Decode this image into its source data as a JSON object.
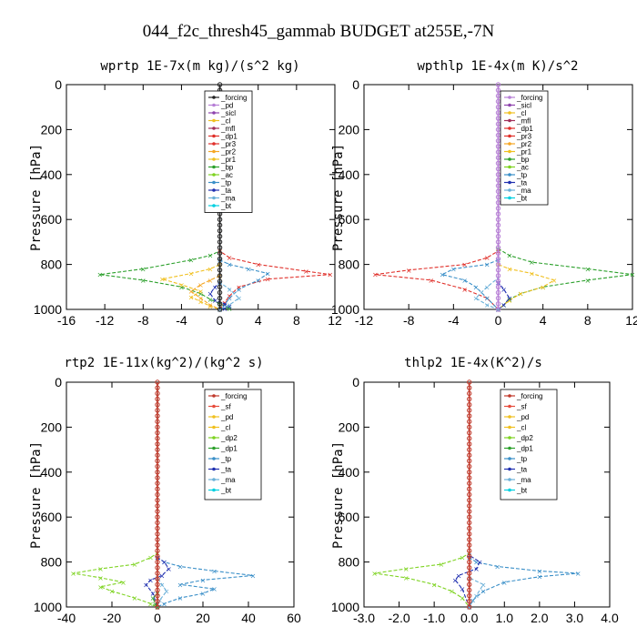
{
  "figure": {
    "title": "044_f2c_thresh45_gammab  BUDGET at255E,-7N"
  },
  "colors": {
    "forcing": "#c0392b",
    "sf": "#e74c3c",
    "pd": "#b77fd6",
    "sicl": "#8e44ad",
    "cl": "#f0c020",
    "mfl": "#a0305a",
    "dp1": "#e0302a",
    "dp2": "#2ca02c",
    "pr3": "#e0302a",
    "pr2": "#f5a623",
    "pr1": "#f0c020",
    "bp": "#2ca02c",
    "ac": "#7ed321",
    "tp": "#3a8fc8",
    "ta": "#2030b0",
    "ma": "#6ab0d8",
    "bt": "#00d0e0"
  },
  "chart_data": [
    {
      "type": "line",
      "title": "wprtp  1E-7x(m kg)/(s^2 kg)",
      "ylabel": "Pressure [hPa]",
      "xlim": [
        -16,
        12
      ],
      "ylim": [
        1000,
        0
      ],
      "xticks": [
        "-16",
        "-12",
        "-8",
        "-4",
        "0",
        "4",
        "8",
        "12"
      ],
      "xtick_values": [
        -16,
        -12,
        -8,
        -4,
        0,
        4,
        8,
        12
      ],
      "yticks": [
        "0",
        "200",
        "400",
        "600",
        "800",
        "1000"
      ],
      "ytick_values": [
        0,
        200,
        400,
        600,
        800,
        1000
      ],
      "legend": [
        "_forcing",
        "_pd",
        "_sicl",
        "_cl",
        "_mfl",
        "_dp1",
        "_pr3",
        "_pr2",
        "_pr1",
        "_bp",
        "_ac",
        "_tp",
        "_ta",
        "_ma",
        "_bt"
      ],
      "legend_colors": [
        "#222222",
        "#b77fd6",
        "#8e44ad",
        "#f0c020",
        "#a0305a",
        "#e0302a",
        "#e0302a",
        "#f5a623",
        "#f0c020",
        "#2ca02c",
        "#7ed321",
        "#3a8fc8",
        "#2030b0",
        "#6ab0d8",
        "#00d0e0"
      ],
      "series": [
        {
          "color": "#2ca02c",
          "x": [
            0,
            0,
            -1,
            -3,
            -8,
            -12.5,
            -8,
            -4,
            -2,
            -1,
            0,
            1,
            0
          ],
          "y": [
            0,
            740,
            760,
            780,
            820,
            845,
            870,
            900,
            930,
            955,
            975,
            995,
            1000
          ]
        },
        {
          "color": "#e0302a",
          "x": [
            0,
            0,
            1,
            4,
            9,
            11.5,
            5,
            2,
            1,
            0.5,
            0
          ],
          "y": [
            0,
            740,
            770,
            800,
            830,
            845,
            865,
            900,
            940,
            970,
            1000
          ]
        },
        {
          "color": "#f0c020",
          "x": [
            0,
            0,
            -1,
            -3,
            -6,
            -4,
            -2,
            -3,
            -2,
            -1,
            0
          ],
          "y": [
            0,
            800,
            820,
            840,
            865,
            890,
            920,
            945,
            965,
            985,
            1000
          ]
        },
        {
          "color": "#f5a623",
          "x": [
            0,
            0,
            -1,
            -2,
            -3,
            -2,
            -1,
            0
          ],
          "y": [
            0,
            850,
            870,
            890,
            920,
            950,
            980,
            1000
          ]
        },
        {
          "color": "#3a8fc8",
          "x": [
            0,
            0,
            1,
            3,
            5,
            4,
            2,
            1,
            0.5,
            0
          ],
          "y": [
            0,
            780,
            800,
            820,
            840,
            870,
            910,
            950,
            980,
            1000
          ]
        },
        {
          "color": "#2030b0",
          "x": [
            0,
            0,
            -0.5,
            -1,
            -0.5,
            0.5,
            1,
            0.5,
            0
          ],
          "y": [
            0,
            880,
            900,
            930,
            960,
            975,
            985,
            995,
            1000
          ]
        },
        {
          "color": "#6ab0d8",
          "x": [
            0,
            0,
            1,
            2,
            1,
            0
          ],
          "y": [
            0,
            880,
            910,
            950,
            980,
            1000
          ]
        },
        {
          "color": "#222222",
          "x": [
            0,
            0
          ],
          "y": [
            0,
            1000
          ],
          "markers": true
        }
      ]
    },
    {
      "type": "line",
      "title": "wpthlp  1E-4x(m K)/s^2",
      "ylabel": "Pressure [hPa]",
      "xlim": [
        -12,
        12
      ],
      "ylim": [
        1000,
        0
      ],
      "xticks": [
        "-12",
        "-8",
        "-4",
        "0",
        "4",
        "8",
        "12"
      ],
      "xtick_values": [
        -12,
        -8,
        -4,
        0,
        4,
        8,
        12
      ],
      "yticks": [
        "0",
        "200",
        "400",
        "600",
        "800",
        "1000"
      ],
      "ytick_values": [
        0,
        200,
        400,
        600,
        800,
        1000
      ],
      "legend": [
        "_forcing",
        "_sicl",
        "_cl",
        "_mfl",
        "_dp1",
        "_pr3",
        "_pr2",
        "_pr1",
        "_bp",
        "_ac",
        "_tp",
        "_ta",
        "_ma",
        "_bt"
      ],
      "legend_colors": [
        "#b77fd6",
        "#8e44ad",
        "#f0c020",
        "#a0305a",
        "#e0302a",
        "#e0302a",
        "#f5a623",
        "#f0c020",
        "#2ca02c",
        "#7ed321",
        "#3a8fc8",
        "#2030b0",
        "#6ab0d8",
        "#00d0e0"
      ],
      "series": [
        {
          "color": "#2ca02c",
          "x": [
            0,
            0,
            1,
            3,
            8,
            12,
            8,
            4,
            2,
            1,
            0.5,
            0
          ],
          "y": [
            0,
            730,
            760,
            790,
            820,
            845,
            870,
            900,
            930,
            955,
            980,
            1000
          ]
        },
        {
          "color": "#e0302a",
          "x": [
            0,
            0,
            -1,
            -3,
            -8,
            -11,
            -6,
            -3,
            -1,
            0
          ],
          "y": [
            0,
            740,
            770,
            800,
            825,
            845,
            870,
            910,
            950,
            1000
          ]
        },
        {
          "color": "#f0c020",
          "x": [
            0,
            0,
            1,
            3,
            5,
            4,
            2,
            1,
            0
          ],
          "y": [
            0,
            800,
            820,
            840,
            870,
            900,
            930,
            960,
            1000
          ]
        },
        {
          "color": "#3a8fc8",
          "x": [
            0,
            0,
            -1,
            -4,
            -5,
            -3,
            -2,
            -1,
            0
          ],
          "y": [
            0,
            780,
            800,
            820,
            845,
            870,
            900,
            950,
            1000
          ]
        },
        {
          "color": "#2030b0",
          "x": [
            0,
            0,
            0.5,
            1,
            0.5,
            0
          ],
          "y": [
            0,
            880,
            910,
            950,
            980,
            1000
          ]
        },
        {
          "color": "#6ab0d8",
          "x": [
            0,
            0,
            -1,
            -2,
            -1,
            0
          ],
          "y": [
            0,
            860,
            900,
            950,
            980,
            1000
          ]
        },
        {
          "color": "#b77fd6",
          "x": [
            0,
            0
          ],
          "y": [
            0,
            1000
          ],
          "markers": true
        }
      ]
    },
    {
      "type": "line",
      "title": "rtp2  1E-11x(kg^2)/(kg^2 s)",
      "ylabel": "Pressure [hPa]",
      "xlim": [
        -40,
        60
      ],
      "ylim": [
        1000,
        0
      ],
      "xticks": [
        "-40",
        "-20",
        "0",
        "20",
        "40",
        "60"
      ],
      "xtick_values": [
        -40,
        -20,
        0,
        20,
        40,
        60
      ],
      "yticks": [
        "0",
        "200",
        "400",
        "600",
        "800",
        "1000"
      ],
      "ytick_values": [
        0,
        200,
        400,
        600,
        800,
        1000
      ],
      "legend": [
        "_forcing",
        "_sf",
        "_pd",
        "_cl",
        "_dp2",
        "_dp1",
        "_tp",
        "_ta",
        "_ma",
        "_bt"
      ],
      "legend_colors": [
        "#c0392b",
        "#e74c3c",
        "#f0c020",
        "#f0c020",
        "#7ed321",
        "#2ca02c",
        "#3a8fc8",
        "#2030b0",
        "#6ab0d8",
        "#00d0e0"
      ],
      "series": [
        {
          "color": "#7ed321",
          "x": [
            0,
            0,
            -3,
            -10,
            -25,
            -37,
            -25,
            -15,
            -25,
            -20,
            -10,
            -3,
            0
          ],
          "y": [
            0,
            760,
            780,
            810,
            830,
            850,
            870,
            890,
            910,
            930,
            960,
            985,
            1000
          ]
        },
        {
          "color": "#3a8fc8",
          "x": [
            0,
            0,
            3,
            10,
            25,
            42,
            20,
            10,
            25,
            20,
            10,
            3,
            0
          ],
          "y": [
            0,
            780,
            800,
            820,
            840,
            860,
            880,
            900,
            920,
            940,
            960,
            985,
            1000
          ]
        },
        {
          "color": "#2030b0",
          "x": [
            0,
            0,
            3,
            5,
            2,
            -3,
            -5,
            -2,
            0
          ],
          "y": [
            0,
            780,
            800,
            830,
            860,
            880,
            900,
            940,
            1000
          ]
        },
        {
          "color": "#6ab0d8",
          "x": [
            0,
            0,
            2,
            4,
            1,
            0
          ],
          "y": [
            0,
            870,
            900,
            930,
            970,
            1000
          ]
        },
        {
          "color": "#2ca02c",
          "x": [
            0,
            0,
            -2,
            -1,
            0
          ],
          "y": [
            0,
            940,
            960,
            985,
            1000
          ]
        },
        {
          "color": "#c0392b",
          "x": [
            0,
            0
          ],
          "y": [
            0,
            1000
          ],
          "markers": true
        }
      ]
    },
    {
      "type": "line",
      "title": "thlp2  1E-4x(K^2)/s",
      "ylabel": "Pressure [hPa]",
      "xlim": [
        -3,
        4
      ],
      "ylim": [
        1000,
        0
      ],
      "xticks": [
        "-3.0",
        "-2.0",
        "-1.0",
        "0.0",
        "1.0",
        "2.0",
        "3.0",
        "4.0"
      ],
      "xtick_values": [
        -3,
        -2,
        -1,
        0,
        1,
        2,
        3,
        4
      ],
      "yticks": [
        "0",
        "200",
        "400",
        "600",
        "800",
        "1000"
      ],
      "ytick_values": [
        0,
        200,
        400,
        600,
        800,
        1000
      ],
      "legend": [
        "_forcing",
        "_sf",
        "_pd",
        "_cl",
        "_dp2",
        "_dp1",
        "_tp",
        "_ta",
        "_ma",
        "_bt"
      ],
      "legend_colors": [
        "#c0392b",
        "#e74c3c",
        "#f0c020",
        "#f0c020",
        "#7ed321",
        "#2ca02c",
        "#3a8fc8",
        "#2030b0",
        "#6ab0d8",
        "#00d0e0"
      ],
      "series": [
        {
          "color": "#7ed321",
          "x": [
            0,
            0,
            -0.2,
            -0.8,
            -1.8,
            -2.7,
            -1.8,
            -1,
            -0.5,
            -0.2,
            0
          ],
          "y": [
            0,
            760,
            780,
            810,
            830,
            850,
            870,
            900,
            930,
            960,
            1000
          ]
        },
        {
          "color": "#3a8fc8",
          "x": [
            0,
            0,
            0.2,
            0.8,
            2,
            3.1,
            2,
            1,
            0.4,
            0.1,
            0
          ],
          "y": [
            0,
            780,
            800,
            820,
            840,
            850,
            865,
            890,
            930,
            970,
            1000
          ]
        },
        {
          "color": "#2030b0",
          "x": [
            0,
            0,
            0.3,
            0.2,
            -0.3,
            -0.4,
            -0.2,
            0
          ],
          "y": [
            0,
            770,
            800,
            830,
            860,
            880,
            920,
            1000
          ]
        },
        {
          "color": "#6ab0d8",
          "x": [
            0,
            0,
            0.4,
            0.2,
            0
          ],
          "y": [
            0,
            870,
            900,
            950,
            1000
          ]
        },
        {
          "color": "#c0392b",
          "x": [
            0,
            0
          ],
          "y": [
            0,
            1000
          ],
          "markers": true
        }
      ]
    }
  ]
}
